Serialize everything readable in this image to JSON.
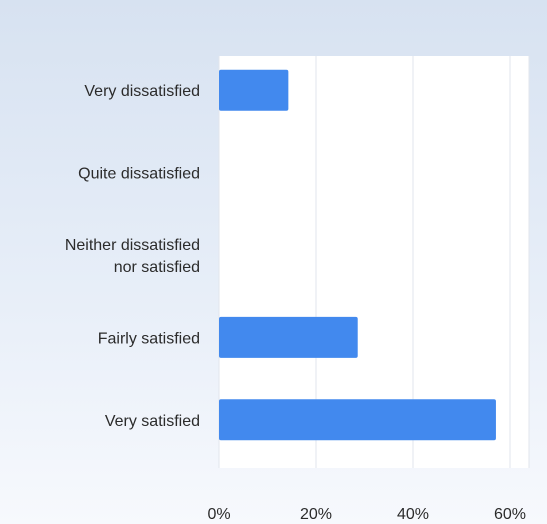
{
  "chart_data": {
    "type": "bar",
    "orientation": "horizontal",
    "categories": [
      [
        "Very dissatisfied"
      ],
      [
        "Quite dissatisfied"
      ],
      [
        "Neither dissatisfied",
        "nor satisfied"
      ],
      [
        "Fairly satisfied"
      ],
      [
        "Very satisfied"
      ]
    ],
    "values": [
      14.3,
      0,
      0,
      28.6,
      57.1
    ],
    "xlim": [
      0,
      60
    ],
    "x_ticks": [
      {
        "value": 0,
        "label": "0%"
      },
      {
        "value": 20,
        "label": "20%"
      },
      {
        "value": 40,
        "label": "40%"
      },
      {
        "value": 60,
        "label": "60%"
      }
    ],
    "grid": true,
    "bar_color": "#4289ee",
    "grid_color": "#e2e6ec",
    "legend": "none"
  }
}
